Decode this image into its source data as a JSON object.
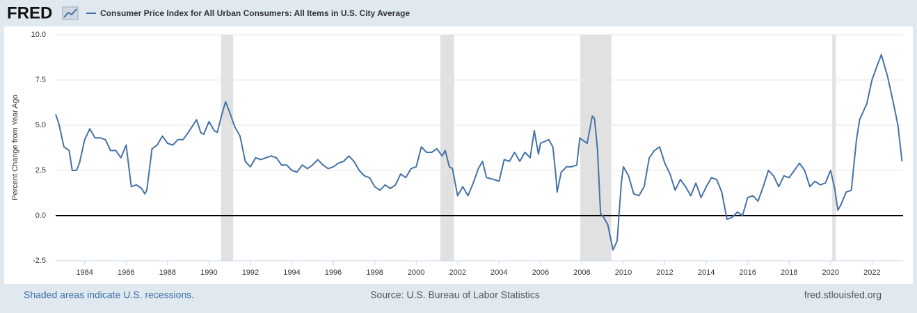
{
  "logo": "FRED",
  "chart_data": {
    "type": "line",
    "y_label": "Percent Change from Year Ago",
    "x": [
      1982.6,
      1982.75,
      1983.0,
      1983.25,
      1983.4,
      1983.6,
      1983.75,
      1984.0,
      1984.25,
      1984.5,
      1984.75,
      1985.0,
      1985.25,
      1985.5,
      1985.75,
      1986.0,
      1986.25,
      1986.5,
      1986.75,
      1986.9,
      1987.0,
      1987.25,
      1987.5,
      1987.75,
      1988.0,
      1988.25,
      1988.5,
      1988.75,
      1989.0,
      1989.4,
      1989.6,
      1989.75,
      1990.0,
      1990.25,
      1990.4,
      1990.6,
      1990.8,
      1991.0,
      1991.25,
      1991.5,
      1991.75,
      1992.0,
      1992.25,
      1992.5,
      1992.75,
      1993.0,
      1993.25,
      1993.5,
      1993.75,
      1994.0,
      1994.25,
      1994.5,
      1994.75,
      1995.0,
      1995.25,
      1995.5,
      1995.75,
      1996.0,
      1996.25,
      1996.5,
      1996.75,
      1997.0,
      1997.25,
      1997.5,
      1997.75,
      1998.0,
      1998.25,
      1998.5,
      1998.75,
      1999.0,
      1999.25,
      1999.5,
      1999.75,
      2000.0,
      2000.25,
      2000.5,
      2000.75,
      2001.0,
      2001.25,
      2001.4,
      2001.6,
      2001.75,
      2002.0,
      2002.25,
      2002.5,
      2002.75,
      2003.0,
      2003.2,
      2003.4,
      2003.75,
      2004.0,
      2004.25,
      2004.5,
      2004.75,
      2005.0,
      2005.25,
      2005.5,
      2005.7,
      2005.9,
      2006.0,
      2006.4,
      2006.6,
      2006.75,
      2006.8,
      2007.0,
      2007.25,
      2007.5,
      2007.75,
      2007.9,
      2008.0,
      2008.25,
      2008.5,
      2008.6,
      2008.75,
      2008.9,
      2009.0,
      2009.25,
      2009.5,
      2009.7,
      2009.9,
      2010.0,
      2010.25,
      2010.5,
      2010.75,
      2011.0,
      2011.25,
      2011.5,
      2011.75,
      2012.0,
      2012.25,
      2012.5,
      2012.75,
      2013.0,
      2013.25,
      2013.5,
      2013.75,
      2014.0,
      2014.25,
      2014.5,
      2014.75,
      2015.0,
      2015.25,
      2015.5,
      2015.75,
      2016.0,
      2016.25,
      2016.5,
      2016.75,
      2017.0,
      2017.25,
      2017.5,
      2017.75,
      2018.0,
      2018.25,
      2018.5,
      2018.75,
      2019.0,
      2019.25,
      2019.5,
      2019.75,
      2020.0,
      2020.2,
      2020.35,
      2020.5,
      2020.75,
      2021.0,
      2021.25,
      2021.4,
      2021.75,
      2022.0,
      2022.25,
      2022.45,
      2022.6,
      2022.75,
      2023.0,
      2023.25,
      2023.45
    ],
    "series": [
      {
        "name": "Consumer Price Index for All Urban Consumers: All Items in U.S. City Average",
        "color": "#4572a7",
        "values": [
          5.6,
          5.1,
          3.8,
          3.6,
          2.5,
          2.5,
          2.9,
          4.2,
          4.8,
          4.3,
          4.3,
          4.2,
          3.6,
          3.6,
          3.2,
          3.9,
          1.6,
          1.7,
          1.5,
          1.2,
          1.4,
          3.7,
          3.9,
          4.4,
          4.0,
          3.9,
          4.2,
          4.2,
          4.6,
          5.3,
          4.6,
          4.5,
          5.2,
          4.7,
          4.6,
          5.5,
          6.3,
          5.7,
          4.9,
          4.4,
          3.0,
          2.7,
          3.2,
          3.1,
          3.2,
          3.3,
          3.2,
          2.8,
          2.8,
          2.5,
          2.4,
          2.8,
          2.6,
          2.8,
          3.1,
          2.8,
          2.6,
          2.7,
          2.9,
          3.0,
          3.3,
          3.0,
          2.5,
          2.2,
          2.1,
          1.6,
          1.4,
          1.7,
          1.5,
          1.7,
          2.3,
          2.1,
          2.6,
          2.7,
          3.8,
          3.5,
          3.5,
          3.7,
          3.3,
          3.6,
          2.7,
          2.6,
          1.1,
          1.6,
          1.1,
          1.8,
          2.6,
          3.0,
          2.1,
          2.0,
          1.9,
          3.1,
          3.0,
          3.5,
          3.0,
          3.5,
          3.2,
          4.7,
          3.4,
          4.0,
          4.2,
          3.8,
          2.1,
          1.3,
          2.4,
          2.7,
          2.7,
          2.8,
          4.3,
          4.2,
          4.0,
          5.5,
          5.4,
          3.7,
          0.1,
          0.0,
          -0.5,
          -1.9,
          -1.4,
          1.8,
          2.7,
          2.2,
          1.2,
          1.1,
          1.6,
          3.2,
          3.6,
          3.8,
          2.9,
          2.3,
          1.4,
          2.0,
          1.6,
          1.1,
          1.8,
          1.0,
          1.6,
          2.1,
          2.0,
          1.3,
          -0.2,
          -0.1,
          0.2,
          0.0,
          1.0,
          1.1,
          0.8,
          1.6,
          2.5,
          2.2,
          1.6,
          2.2,
          2.1,
          2.5,
          2.9,
          2.5,
          1.6,
          1.9,
          1.7,
          1.8,
          2.5,
          1.5,
          0.3,
          0.6,
          1.3,
          1.4,
          4.2,
          5.3,
          6.2,
          7.5,
          8.3,
          8.9,
          8.3,
          7.7,
          6.4,
          5.0,
          3.0
        ]
      }
    ],
    "recessions": [
      {
        "start": 1990.58,
        "end": 1991.17
      },
      {
        "start": 2001.17,
        "end": 2001.83
      },
      {
        "start": 2007.92,
        "end": 2009.42
      },
      {
        "start": 2020.08,
        "end": 2020.25
      }
    ],
    "xlim": [
      1982.6,
      2023.5
    ],
    "xticks": [
      1984,
      1986,
      1988,
      1990,
      1992,
      1994,
      1996,
      1998,
      2000,
      2002,
      2004,
      2006,
      2008,
      2010,
      2012,
      2014,
      2016,
      2018,
      2020,
      2022
    ],
    "ylim": [
      -2.5,
      10
    ],
    "yticks": [
      {
        "value": -2.5,
        "label": "-2.5"
      },
      {
        "value": 0,
        "label": "0.0"
      },
      2.5,
      {
        "value": 5,
        "label": "5.0"
      },
      7.5,
      {
        "value": 10,
        "label": "10.0"
      }
    ],
    "grid": true,
    "recession_note": "Shaded areas indicate U.S. recessions.",
    "source": "Source: U.S. Bureau of Labor Statistics",
    "site": "fred.stlouisfed.org"
  }
}
